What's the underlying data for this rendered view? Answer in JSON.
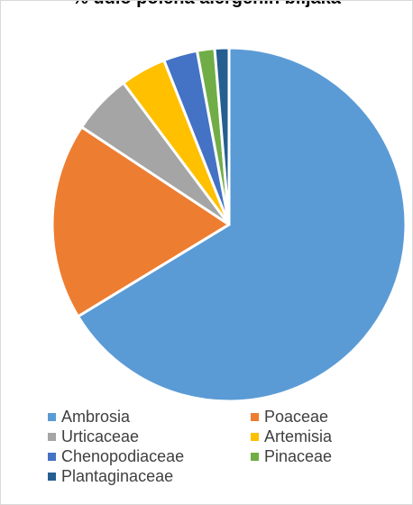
{
  "chart_data": {
    "type": "pie",
    "title": "% udio polena alergenih biljaka",
    "categories": [
      "Ambrosia",
      "Poaceae",
      "Urticaceae",
      "Artemisia",
      "Chenopodiaceae",
      "Pinaceae",
      "Plantaginaceae"
    ],
    "values": [
      66.3,
      18.0,
      5.5,
      4.2,
      3.1,
      1.6,
      1.3
    ],
    "colors": [
      "#5b9bd5",
      "#ed7d31",
      "#a5a5a5",
      "#ffc000",
      "#4472c4",
      "#70ad47",
      "#255e91"
    ],
    "legend_position": "bottom"
  }
}
